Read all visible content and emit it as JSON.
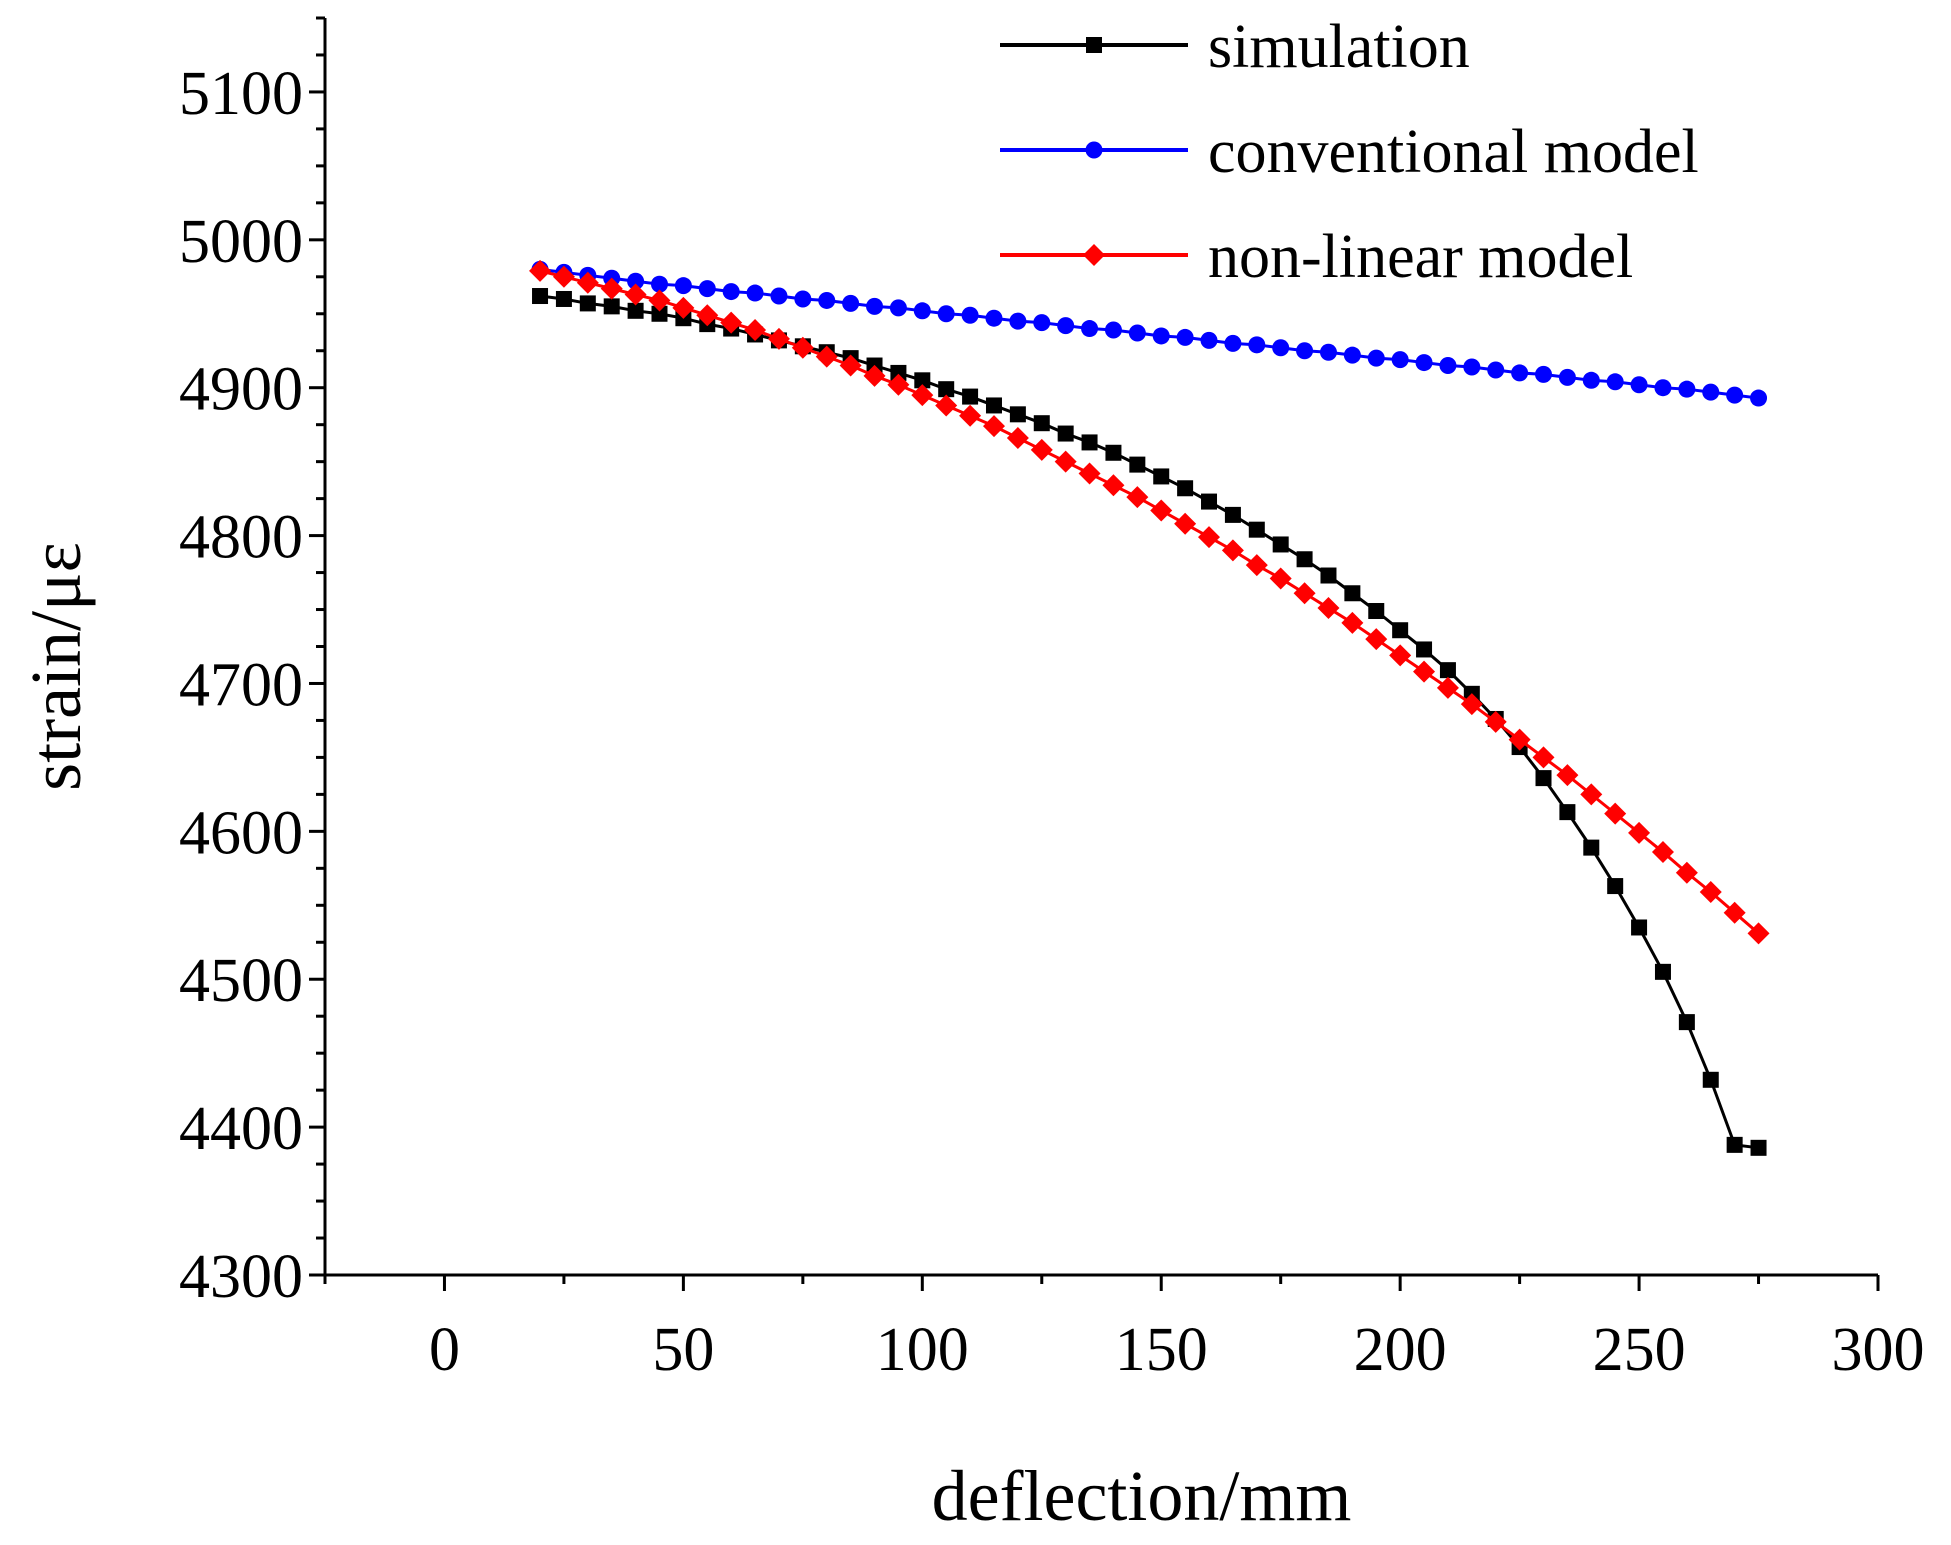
{
  "chart_data": {
    "type": "line",
    "title": "",
    "xlabel": "deflection/mm",
    "ylabel": "strain/με",
    "xlim": [
      -25,
      300
    ],
    "ylim": [
      4300,
      5150
    ],
    "xticks": [
      0,
      50,
      100,
      150,
      200,
      250,
      300
    ],
    "yticks": [
      4300,
      4400,
      4500,
      4600,
      4700,
      4800,
      4900,
      5000,
      5100
    ],
    "xtick_labels": [
      "0",
      "50",
      "100",
      "150",
      "200",
      "250",
      "300"
    ],
    "ytick_labels": [
      "4300",
      "4400",
      "4500",
      "4600",
      "4700",
      "4800",
      "4900",
      "5000",
      "5100"
    ],
    "grid": false,
    "legend_position": "top-right",
    "x": [
      20,
      25,
      30,
      35,
      40,
      45,
      50,
      55,
      60,
      65,
      70,
      75,
      80,
      85,
      90,
      95,
      100,
      105,
      110,
      115,
      120,
      125,
      130,
      135,
      140,
      145,
      150,
      155,
      160,
      165,
      170,
      175,
      180,
      185,
      190,
      195,
      200,
      205,
      210,
      215,
      220,
      225,
      230,
      235,
      240,
      245,
      250,
      255,
      260,
      265,
      270,
      275
    ],
    "series": [
      {
        "name": "simulation",
        "color": "#000000",
        "marker": "square",
        "values": [
          4962,
          4960,
          4957,
          4955,
          4952,
          4950,
          4947,
          4943,
          4940,
          4936,
          4932,
          4928,
          4924,
          4920,
          4915,
          4910,
          4905,
          4899,
          4894,
          4888,
          4882,
          4876,
          4869,
          4863,
          4856,
          4848,
          4840,
          4832,
          4823,
          4814,
          4804,
          4794,
          4784,
          4773,
          4761,
          4749,
          4736,
          4723,
          4709,
          4693,
          4676,
          4657,
          4636,
          4613,
          4589,
          4563,
          4535,
          4505,
          4471,
          4432,
          4388,
          4386
        ]
      },
      {
        "name": "conventional model",
        "color": "#0000ff",
        "marker": "circle",
        "values": [
          4980,
          4978,
          4976,
          4974,
          4972,
          4970,
          4969,
          4967,
          4965,
          4964,
          4962,
          4960,
          4959,
          4957,
          4955,
          4954,
          4952,
          4950,
          4949,
          4947,
          4945,
          4944,
          4942,
          4940,
          4939,
          4937,
          4935,
          4934,
          4932,
          4930,
          4929,
          4927,
          4925,
          4924,
          4922,
          4920,
          4919,
          4917,
          4915,
          4914,
          4912,
          4910,
          4909,
          4907,
          4905,
          4904,
          4902,
          4900,
          4899,
          4897,
          4895,
          4893
        ]
      },
      {
        "name": "non-linear model",
        "color": "#ff0000",
        "marker": "diamond",
        "values": [
          4979,
          4975,
          4971,
          4967,
          4963,
          4959,
          4954,
          4949,
          4944,
          4939,
          4933,
          4927,
          4921,
          4915,
          4908,
          4902,
          4895,
          4888,
          4881,
          4874,
          4866,
          4858,
          4850,
          4842,
          4834,
          4826,
          4817,
          4808,
          4799,
          4790,
          4780,
          4771,
          4761,
          4751,
          4741,
          4730,
          4719,
          4708,
          4697,
          4686,
          4674,
          4662,
          4650,
          4638,
          4625,
          4612,
          4599,
          4586,
          4572,
          4559,
          4545,
          4531
        ]
      }
    ]
  }
}
